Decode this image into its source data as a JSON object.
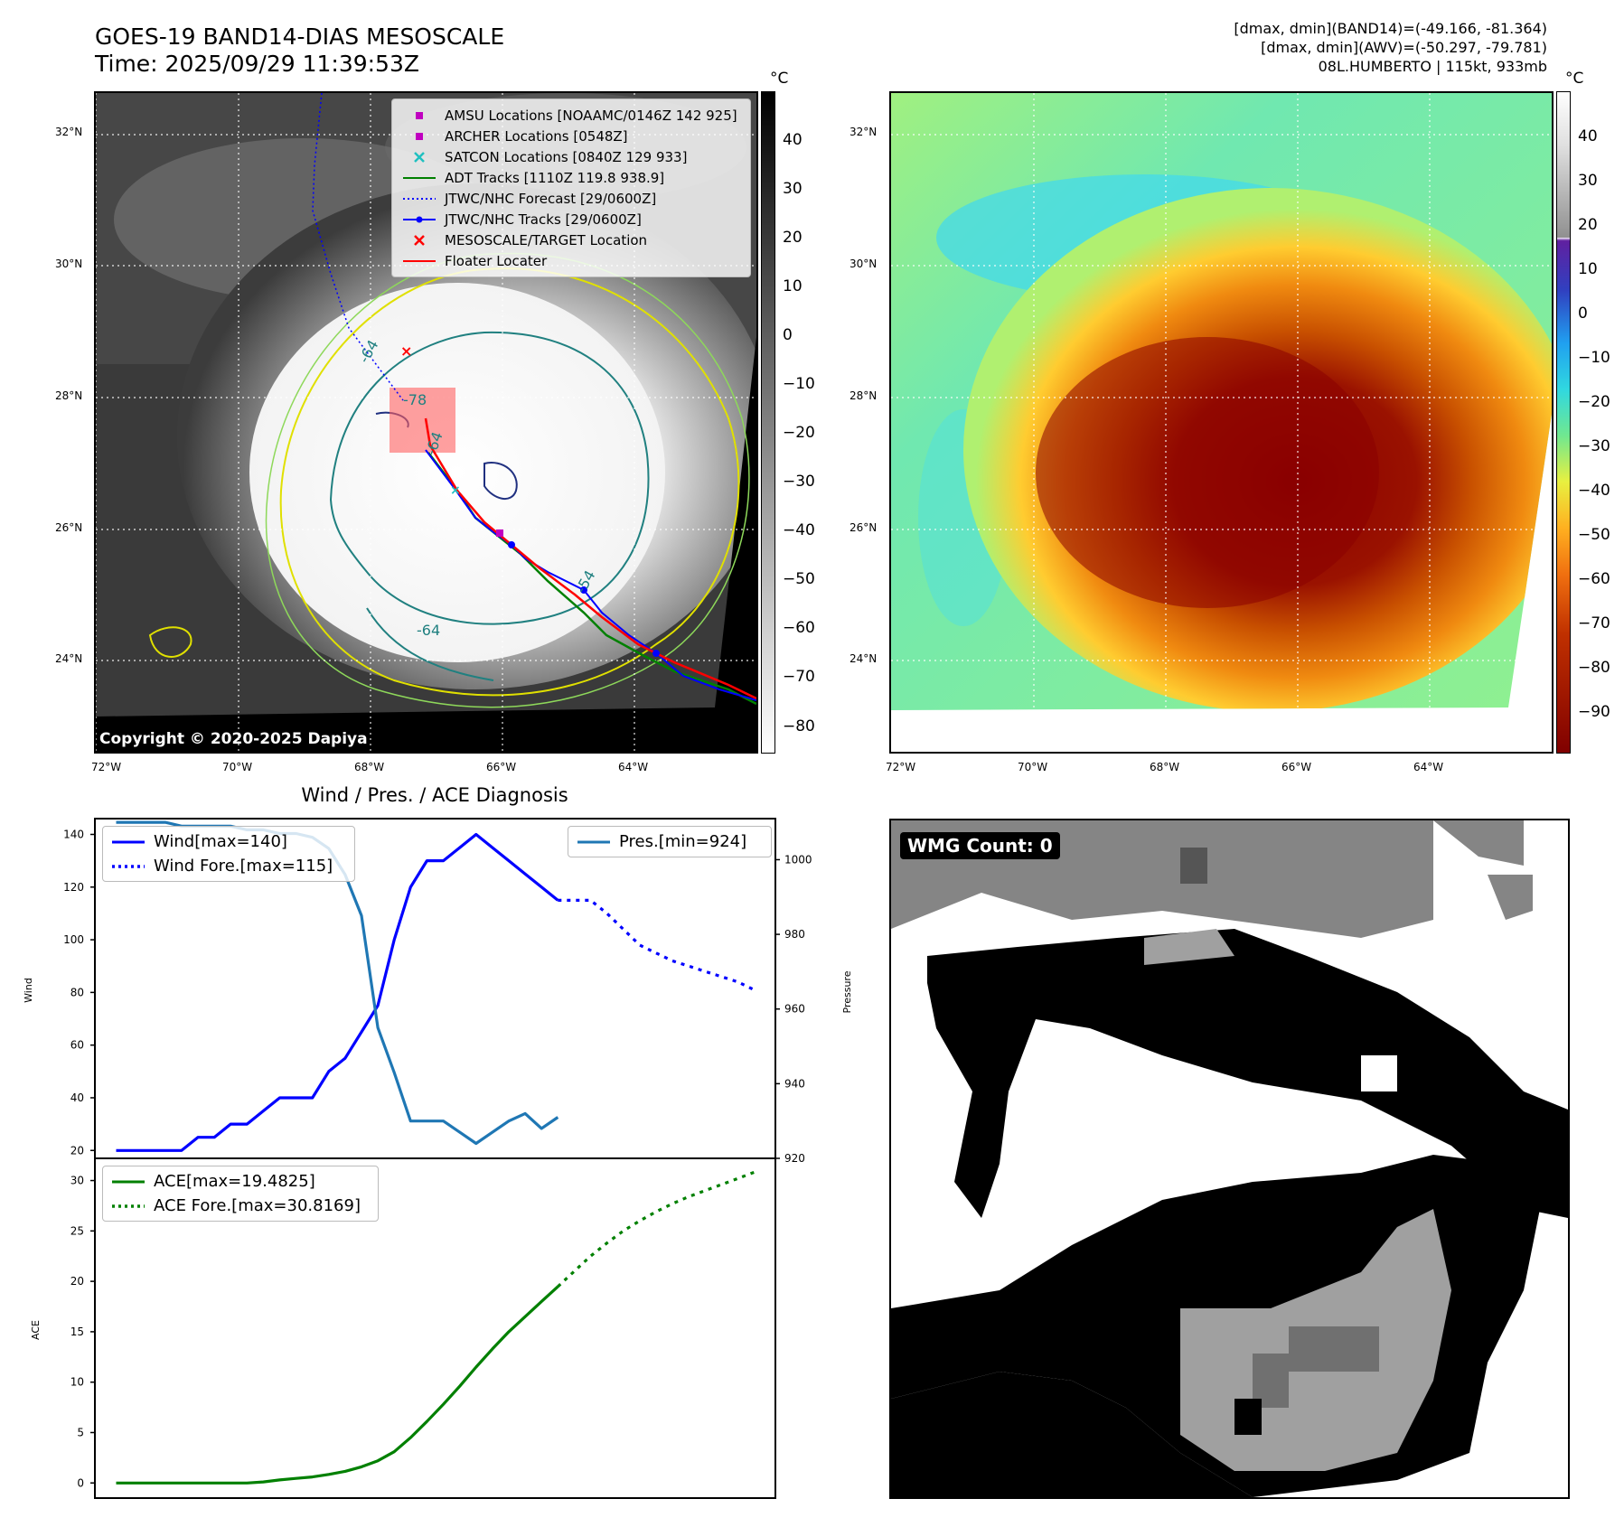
{
  "header": {
    "title_line1": "GOES-19 BAND14-DIAS MESOSCALE",
    "title_line2": "Time: 2025/09/29 11:39:53Z",
    "info_line1": "[dmax, dmin](BAND14)=(-49.166, -81.364)",
    "info_line2": "[dmax, dmin](AWV)=(-50.297, -79.781)",
    "info_line3": "08L.HUMBERTO | 115kt, 933mb"
  },
  "map_left": {
    "lat_labels": [
      "32°N",
      "30°N",
      "28°N",
      "26°N",
      "24°N"
    ],
    "lon_labels": [
      "72°W",
      "70°W",
      "68°W",
      "66°W",
      "64°W"
    ],
    "legend": [
      {
        "label": "AMSU Locations [NOAAMC/0146Z 142 925]",
        "symbol": "square",
        "color": "#c000c0"
      },
      {
        "label": "ARCHER Locations [0548Z]",
        "symbol": "square",
        "color": "#c000c0"
      },
      {
        "label": "SATCON Locations [0840Z 129 933]",
        "symbol": "x",
        "color": "#20c0c0"
      },
      {
        "label": "ADT Tracks [1110Z 119.8 938.9]",
        "symbol": "line",
        "color": "#008000"
      },
      {
        "label": "JTWC/NHC Forecast [29/0600Z]",
        "symbol": "dotted",
        "color": "#0000ff"
      },
      {
        "label": "JTWC/NHC Tracks [29/0600Z]",
        "symbol": "line-dot",
        "color": "#0000ff"
      },
      {
        "label": "MESOSCALE/TARGET Location",
        "symbol": "x",
        "color": "#ff0000"
      },
      {
        "label": "Floater Locater",
        "symbol": "line",
        "color": "#ff0000"
      }
    ],
    "contour_labels": [
      "-64",
      "-64",
      "-54",
      "-78",
      "-64"
    ],
    "copyright": "Copyright © 2020-2025 Dapiya",
    "colorbar": {
      "unit": "°C",
      "ticks": [
        "40",
        "30",
        "20",
        "10",
        "0",
        "−10",
        "−20",
        "−30",
        "−40",
        "−50",
        "−60",
        "−70",
        "−80"
      ]
    }
  },
  "map_right": {
    "lat_labels": [
      "32°N",
      "30°N",
      "28°N",
      "26°N",
      "24°N"
    ],
    "lon_labels": [
      "72°W",
      "70°W",
      "68°W",
      "66°W",
      "64°W"
    ],
    "colorbar": {
      "unit": "°C",
      "ticks": [
        "40",
        "30",
        "20",
        "10",
        "0",
        "−10",
        "−20",
        "−30",
        "−40",
        "−50",
        "−60",
        "−70",
        "−80",
        "−90"
      ]
    }
  },
  "wmg": {
    "label": "WMG Count: 0"
  },
  "chart_data": [
    {
      "type": "line",
      "title": "Wind / Pres. / ACE Diagnosis",
      "ylabel": "Wind",
      "y2label": "Pressure",
      "x": [
        0,
        1,
        2,
        3,
        4,
        5,
        6,
        7,
        8,
        9,
        10,
        11,
        12,
        13,
        14,
        15,
        16,
        17,
        18,
        19,
        20,
        21,
        22,
        23,
        24,
        25,
        26,
        27,
        28,
        29,
        30,
        31,
        32,
        33,
        34,
        35,
        36,
        37,
        38,
        39
      ],
      "xlim": [
        -1.3,
        40.3
      ],
      "ylim": [
        17,
        146
      ],
      "y2lim": [
        920,
        1011
      ],
      "yticks": [
        20,
        40,
        60,
        80,
        100,
        120,
        140
      ],
      "y2ticks": [
        920,
        940,
        960,
        980,
        1000
      ],
      "series": [
        {
          "name": "Wind[max=140]",
          "axis": "left",
          "color": "#0000ff",
          "style": "solid",
          "x": [
            0,
            1,
            2,
            3,
            4,
            5,
            6,
            7,
            8,
            9,
            10,
            11,
            12,
            13,
            14,
            15,
            16,
            17,
            18,
            19,
            20,
            21,
            22,
            23,
            24,
            25,
            26,
            27
          ],
          "values": [
            20,
            20,
            20,
            20,
            20,
            25,
            25,
            30,
            30,
            35,
            40,
            40,
            40,
            50,
            55,
            65,
            75,
            100,
            120,
            130,
            130,
            135,
            140,
            135,
            130,
            125,
            120,
            115
          ]
        },
        {
          "name": "Wind Fore.[max=115]",
          "axis": "left",
          "color": "#0000ff",
          "style": "dotted",
          "x": [
            27,
            28,
            29,
            30,
            31,
            32,
            33,
            34,
            35,
            36,
            37,
            38,
            39
          ],
          "values": [
            115,
            115,
            115,
            110,
            104,
            98,
            95,
            92,
            90,
            88,
            86,
            84,
            81
          ]
        },
        {
          "name": "Pres.[min=924]",
          "axis": "right",
          "color": "#1f77b4",
          "style": "solid",
          "x": [
            0,
            1,
            2,
            3,
            4,
            5,
            6,
            7,
            8,
            9,
            10,
            11,
            12,
            13,
            14,
            15,
            16,
            17,
            18,
            19,
            20,
            21,
            22,
            23,
            24,
            25,
            26,
            27
          ],
          "values": [
            1010,
            1010,
            1010,
            1010,
            1009,
            1009,
            1009,
            1009,
            1008,
            1008,
            1007,
            1007,
            1006,
            1003,
            996,
            985,
            955,
            943,
            930,
            930,
            930,
            927,
            924,
            927,
            930,
            932,
            928,
            931
          ]
        }
      ]
    },
    {
      "type": "line",
      "ylabel": "ACE",
      "x": [
        0,
        1,
        2,
        3,
        4,
        5,
        6,
        7,
        8,
        9,
        10,
        11,
        12,
        13,
        14,
        15,
        16,
        17,
        18,
        19,
        20,
        21,
        22,
        23,
        24,
        25,
        26,
        27,
        28,
        29,
        30,
        31,
        32,
        33,
        34,
        35,
        36,
        37,
        38,
        39
      ],
      "xlim": [
        -1.3,
        40.3
      ],
      "ylim": [
        -1.5,
        32.2
      ],
      "yticks": [
        0,
        5,
        10,
        15,
        20,
        25,
        30
      ],
      "series": [
        {
          "name": "ACE[max=19.4825]",
          "color": "#008000",
          "style": "solid",
          "x": [
            0,
            1,
            2,
            3,
            4,
            5,
            6,
            7,
            8,
            9,
            10,
            11,
            12,
            13,
            14,
            15,
            16,
            17,
            18,
            19,
            20,
            21,
            22,
            23,
            24,
            25,
            26,
            27
          ],
          "values": [
            0,
            0,
            0,
            0,
            0,
            0,
            0,
            0,
            0,
            0.1,
            0.3,
            0.45,
            0.6,
            0.85,
            1.15,
            1.6,
            2.2,
            3.1,
            4.5,
            6.1,
            7.8,
            9.6,
            11.5,
            13.3,
            15.0,
            16.5,
            18.0,
            19.48
          ]
        },
        {
          "name": "ACE Fore.[max=30.8169]",
          "color": "#008000",
          "style": "dotted",
          "x": [
            27,
            28,
            29,
            30,
            31,
            32,
            33,
            34,
            35,
            36,
            37,
            38,
            39
          ],
          "values": [
            19.48,
            21.0,
            22.5,
            23.8,
            25.0,
            26.0,
            26.9,
            27.7,
            28.4,
            29.0,
            29.6,
            30.2,
            30.82
          ]
        }
      ]
    }
  ]
}
